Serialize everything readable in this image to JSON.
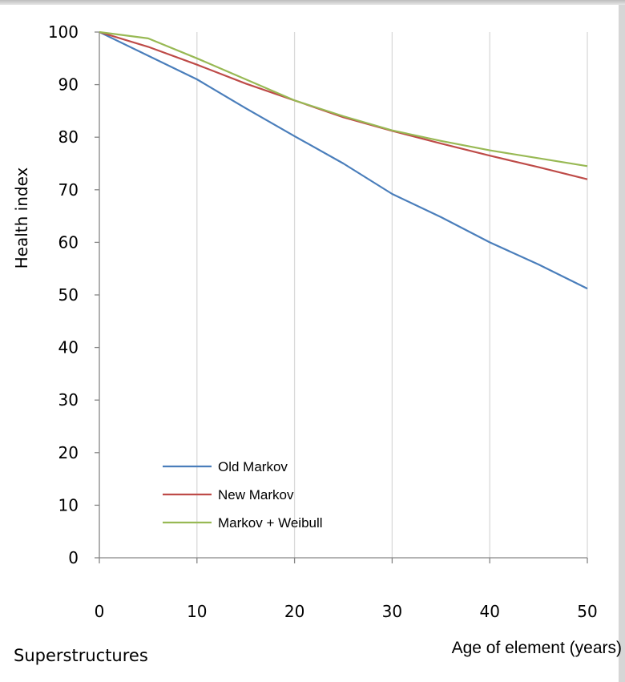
{
  "caption": "Superstructures",
  "chart_data": {
    "type": "line",
    "xlabel": "Age of element (years)",
    "ylabel": "Health index",
    "xlim": [
      0,
      50
    ],
    "ylim": [
      0,
      100
    ],
    "xticks": [
      0,
      10,
      20,
      30,
      40,
      50
    ],
    "yticks": [
      0,
      10,
      20,
      30,
      40,
      50,
      60,
      70,
      80,
      90,
      100
    ],
    "grid": "vertical",
    "legend": "lower-left",
    "x": [
      0,
      5,
      10,
      15,
      20,
      25,
      30,
      35,
      40,
      45,
      50
    ],
    "series": [
      {
        "name": "Old Markov",
        "color": "#4a7ebb",
        "values": [
          100,
          95.5,
          91,
          85.5,
          80.2,
          75,
          69.2,
          64.8,
          60,
          55.8,
          51.2
        ]
      },
      {
        "name": "New Markov",
        "color": "#be4b48",
        "values": [
          100,
          97.2,
          93.8,
          90.2,
          87,
          83.8,
          81.2,
          78.8,
          76.5,
          74.3,
          72
        ]
      },
      {
        "name": "Markov + Weibull",
        "color": "#98b954",
        "values": [
          100,
          98.8,
          95,
          91,
          87,
          84,
          81.3,
          79.3,
          77.5,
          76,
          74.5
        ]
      }
    ]
  }
}
